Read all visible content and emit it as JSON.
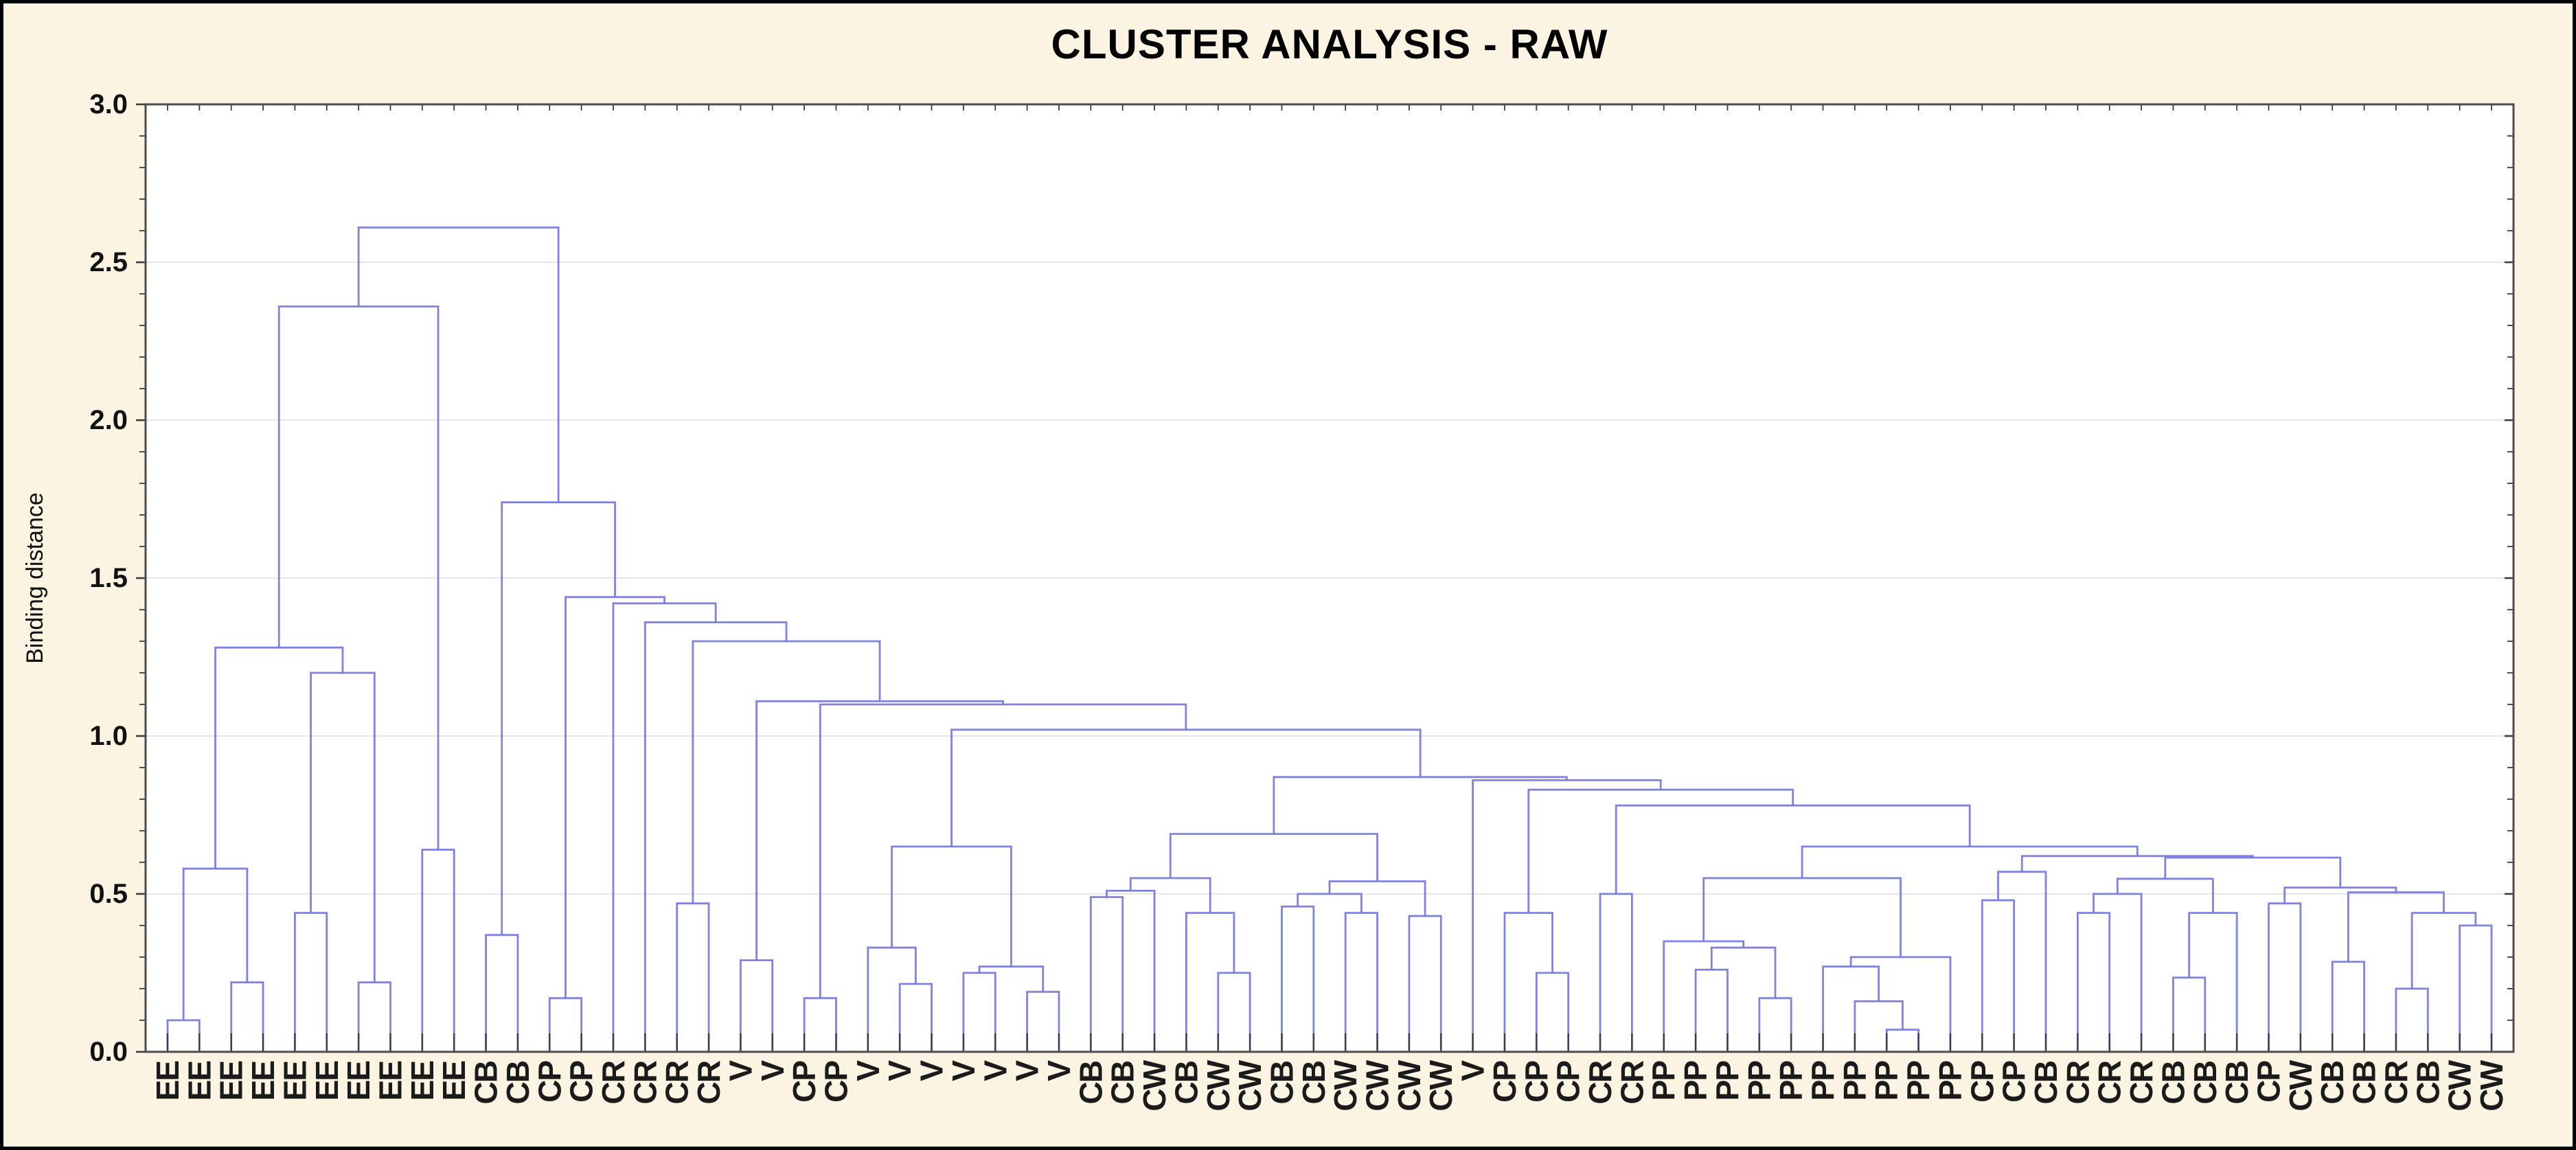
{
  "frame": {
    "background_color": "#fbf4e2",
    "outer_border_color": "#000000",
    "plot_background_color": "#ffffff",
    "axis_color": "#4c4c4c",
    "grid_color": "#dddddd",
    "link_color": "#7577e0",
    "leaf_stub_color": "#3d3d3d",
    "tick_color": "#3c3c3c",
    "text_color": "#111111",
    "leaf_label_color": "#1b1b1b"
  },
  "chart_data": {
    "type": "dendrogram",
    "title": "CLUSTER ANALYSIS - RAW",
    "ylabel": "Binding distance",
    "xlabel": "",
    "ylim": [
      0.0,
      3.0
    ],
    "yticks": [
      0.0,
      0.5,
      1.0,
      1.5,
      2.0,
      2.5,
      3.0
    ],
    "ytick_labels": [
      "0.0",
      "0.5",
      "1.0",
      "1.5",
      "2.0",
      "2.5",
      "3.0"
    ],
    "minor_tick_step": 0.1,
    "grid": "horizontal major gridlines only",
    "legend": "none",
    "orientation": "top",
    "leaves": [
      "EE",
      "EE",
      "EE",
      "EE",
      "EE",
      "EE",
      "EE",
      "EE",
      "EE",
      "EE",
      "CB",
      "CB",
      "CP",
      "CP",
      "CR",
      "CR",
      "CR",
      "CR",
      "V",
      "V",
      "CP",
      "CP",
      "V",
      "V",
      "V",
      "V",
      "V",
      "V",
      "V",
      "CB",
      "CB",
      "CW",
      "CB",
      "CW",
      "CW",
      "CB",
      "CB",
      "CW",
      "CW",
      "CW",
      "CW",
      "V",
      "CP",
      "CP",
      "CP",
      "CR",
      "CR",
      "PP",
      "PP",
      "PP",
      "PP",
      "PP",
      "PP",
      "PP",
      "PP",
      "PP",
      "PP",
      "CP",
      "CP",
      "CB",
      "CR",
      "CR",
      "CR",
      "CB",
      "CB",
      "CB",
      "CP",
      "CW",
      "CB",
      "CB",
      "CR",
      "CB",
      "CW",
      "CW"
    ],
    "linkage_note": "each row = [childA, childB, merge_height]; child < 74 refers to leaf index, child >= 74 refers to merge row (child-74)",
    "linkage": [
      [
        0,
        1,
        0.1
      ],
      [
        2,
        3,
        0.22
      ],
      [
        74,
        75,
        0.58
      ],
      [
        4,
        5,
        0.44
      ],
      [
        6,
        7,
        0.22
      ],
      [
        77,
        78,
        1.2
      ],
      [
        76,
        79,
        1.28
      ],
      [
        8,
        9,
        0.64
      ],
      [
        80,
        81,
        2.36
      ],
      [
        10,
        11,
        0.37
      ],
      [
        12,
        13,
        0.17
      ],
      [
        16,
        17,
        0.47
      ],
      [
        18,
        19,
        0.29
      ],
      [
        20,
        21,
        0.17
      ],
      [
        23,
        24,
        0.215
      ],
      [
        22,
        88,
        0.33
      ],
      [
        25,
        26,
        0.25
      ],
      [
        27,
        28,
        0.19
      ],
      [
        90,
        91,
        0.27
      ],
      [
        89,
        92,
        0.65
      ],
      [
        29,
        30,
        0.49
      ],
      [
        94,
        31,
        0.51
      ],
      [
        33,
        34,
        0.25
      ],
      [
        32,
        96,
        0.44
      ],
      [
        95,
        97,
        0.55
      ],
      [
        35,
        36,
        0.46
      ],
      [
        37,
        38,
        0.44
      ],
      [
        99,
        100,
        0.5
      ],
      [
        39,
        40,
        0.43
      ],
      [
        101,
        102,
        0.54
      ],
      [
        98,
        103,
        0.69
      ],
      [
        43,
        44,
        0.25
      ],
      [
        42,
        105,
        0.44
      ],
      [
        45,
        46,
        0.5
      ],
      [
        54,
        55,
        0.07
      ],
      [
        53,
        108,
        0.16
      ],
      [
        50,
        51,
        0.17
      ],
      [
        48,
        49,
        0.26
      ],
      [
        111,
        110,
        0.33
      ],
      [
        52,
        109,
        0.27
      ],
      [
        113,
        56,
        0.3
      ],
      [
        47,
        112,
        0.35
      ],
      [
        115,
        114,
        0.55
      ],
      [
        57,
        58,
        0.48
      ],
      [
        117,
        59,
        0.57
      ],
      [
        60,
        61,
        0.44
      ],
      [
        119,
        62,
        0.5
      ],
      [
        63,
        64,
        0.235
      ],
      [
        121,
        65,
        0.44
      ],
      [
        120,
        122,
        0.548
      ],
      [
        66,
        67,
        0.47
      ],
      [
        68,
        69,
        0.285
      ],
      [
        70,
        71,
        0.2
      ],
      [
        72,
        73,
        0.4
      ],
      [
        126,
        127,
        0.44
      ],
      [
        125,
        128,
        0.505
      ],
      [
        124,
        129,
        0.52
      ],
      [
        123,
        130,
        0.615
      ],
      [
        118,
        131,
        0.62
      ],
      [
        116,
        132,
        0.65
      ],
      [
        107,
        133,
        0.78
      ],
      [
        106,
        134,
        0.83
      ],
      [
        41,
        135,
        0.86
      ],
      [
        104,
        136,
        0.87
      ],
      [
        93,
        137,
        1.02
      ],
      [
        87,
        138,
        1.1
      ],
      [
        86,
        139,
        1.11
      ],
      [
        85,
        140,
        1.3
      ],
      [
        15,
        141,
        1.36
      ],
      [
        14,
        142,
        1.42
      ],
      [
        84,
        143,
        1.44
      ],
      [
        83,
        144,
        1.74
      ],
      [
        82,
        145,
        2.61
      ]
    ]
  }
}
